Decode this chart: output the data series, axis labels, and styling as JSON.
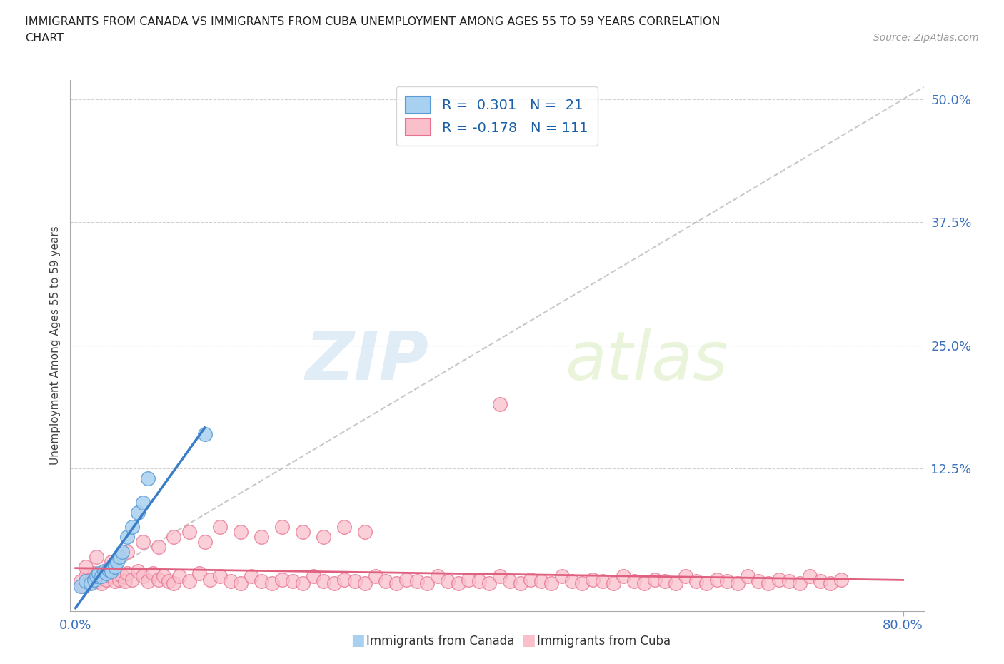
{
  "title_line1": "IMMIGRANTS FROM CANADA VS IMMIGRANTS FROM CUBA UNEMPLOYMENT AMONG AGES 55 TO 59 YEARS CORRELATION",
  "title_line2": "CHART",
  "source_text": "Source: ZipAtlas.com",
  "ylabel": "Unemployment Among Ages 55 to 59 years",
  "xlim": [
    -0.005,
    0.82
  ],
  "ylim": [
    -0.02,
    0.52
  ],
  "ytick_labels": [
    "12.5%",
    "25.0%",
    "37.5%",
    "50.0%"
  ],
  "ytick_values": [
    0.125,
    0.25,
    0.375,
    0.5
  ],
  "canada_color": "#a8d0f0",
  "canada_edge": "#5b9bd5",
  "canada_line_color": "#3a7dc9",
  "cuba_color": "#f9c0cb",
  "cuba_edge": "#e87090",
  "cuba_line_color": "#e06080",
  "diag_color": "#bbbbbb",
  "canada_R": 0.301,
  "canada_N": 21,
  "cuba_R": -0.178,
  "cuba_N": 111,
  "canada_x": [
    0.005,
    0.01,
    0.015,
    0.018,
    0.02,
    0.022,
    0.025,
    0.028,
    0.03,
    0.032,
    0.035,
    0.038,
    0.04,
    0.042,
    0.045,
    0.05,
    0.055,
    0.06,
    0.065,
    0.07,
    0.125
  ],
  "canada_y": [
    0.005,
    0.01,
    0.008,
    0.012,
    0.015,
    0.018,
    0.015,
    0.02,
    0.018,
    0.022,
    0.02,
    0.025,
    0.03,
    0.035,
    0.04,
    0.055,
    0.065,
    0.08,
    0.09,
    0.115,
    0.16
  ],
  "cuba_x": [
    0.005,
    0.008,
    0.01,
    0.012,
    0.015,
    0.018,
    0.02,
    0.022,
    0.025,
    0.028,
    0.03,
    0.032,
    0.035,
    0.038,
    0.04,
    0.042,
    0.045,
    0.048,
    0.05,
    0.055,
    0.06,
    0.065,
    0.07,
    0.075,
    0.08,
    0.085,
    0.09,
    0.095,
    0.1,
    0.11,
    0.12,
    0.13,
    0.14,
    0.15,
    0.16,
    0.17,
    0.18,
    0.19,
    0.2,
    0.21,
    0.22,
    0.23,
    0.24,
    0.25,
    0.26,
    0.27,
    0.28,
    0.29,
    0.3,
    0.31,
    0.32,
    0.33,
    0.34,
    0.35,
    0.36,
    0.37,
    0.38,
    0.39,
    0.4,
    0.41,
    0.42,
    0.43,
    0.44,
    0.45,
    0.46,
    0.47,
    0.48,
    0.49,
    0.5,
    0.51,
    0.52,
    0.53,
    0.54,
    0.55,
    0.56,
    0.57,
    0.58,
    0.59,
    0.6,
    0.61,
    0.62,
    0.63,
    0.64,
    0.65,
    0.66,
    0.67,
    0.68,
    0.69,
    0.7,
    0.71,
    0.72,
    0.73,
    0.74,
    0.01,
    0.02,
    0.035,
    0.05,
    0.065,
    0.08,
    0.095,
    0.11,
    0.125,
    0.14,
    0.16,
    0.18,
    0.2,
    0.22,
    0.24,
    0.26,
    0.28,
    0.41
  ],
  "cuba_y": [
    0.01,
    0.005,
    0.015,
    0.008,
    0.012,
    0.018,
    0.01,
    0.015,
    0.008,
    0.02,
    0.012,
    0.018,
    0.015,
    0.01,
    0.018,
    0.012,
    0.015,
    0.01,
    0.018,
    0.012,
    0.02,
    0.015,
    0.01,
    0.018,
    0.012,
    0.015,
    0.01,
    0.008,
    0.015,
    0.01,
    0.018,
    0.012,
    0.015,
    0.01,
    0.008,
    0.015,
    0.01,
    0.008,
    0.012,
    0.01,
    0.008,
    0.015,
    0.01,
    0.008,
    0.012,
    0.01,
    0.008,
    0.015,
    0.01,
    0.008,
    0.012,
    0.01,
    0.008,
    0.015,
    0.01,
    0.008,
    0.012,
    0.01,
    0.008,
    0.015,
    0.01,
    0.008,
    0.012,
    0.01,
    0.008,
    0.015,
    0.01,
    0.008,
    0.012,
    0.01,
    0.008,
    0.015,
    0.01,
    0.008,
    0.012,
    0.01,
    0.008,
    0.015,
    0.01,
    0.008,
    0.012,
    0.01,
    0.008,
    0.015,
    0.01,
    0.008,
    0.012,
    0.01,
    0.008,
    0.015,
    0.01,
    0.008,
    0.012,
    0.025,
    0.035,
    0.03,
    0.04,
    0.05,
    0.045,
    0.055,
    0.06,
    0.05,
    0.065,
    0.06,
    0.055,
    0.065,
    0.06,
    0.055,
    0.065,
    0.06,
    0.19
  ],
  "watermark_zip": "ZIP",
  "watermark_atlas": "atlas",
  "background_color": "#ffffff",
  "grid_color": "#d0d0d0",
  "legend_label_canada": "Immigrants from Canada",
  "legend_label_cuba": "Immigrants from Cuba"
}
